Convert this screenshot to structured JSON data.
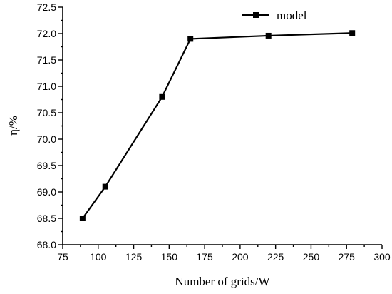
{
  "chart_data": {
    "type": "line",
    "xlabel": "Number of grids/W",
    "ylabel": "η/%",
    "xlim": [
      75,
      300
    ],
    "ylim": [
      68.0,
      72.5
    ],
    "x_ticks": [
      "75",
      "100",
      "125",
      "150",
      "175",
      "200",
      "225",
      "250",
      "275",
      "300"
    ],
    "y_ticks": [
      "68.0",
      "68.5",
      "69.0",
      "69.5",
      "70.0",
      "70.5",
      "71.0",
      "71.5",
      "72.0",
      "72.5"
    ],
    "grid": false,
    "legend_position": "top-right",
    "series": [
      {
        "name": "model",
        "color": "#000000",
        "marker": "square",
        "x": [
          89,
          105,
          145,
          165,
          220,
          279
        ],
        "y": [
          68.5,
          69.1,
          70.8,
          71.9,
          71.96,
          72.01
        ]
      }
    ]
  }
}
